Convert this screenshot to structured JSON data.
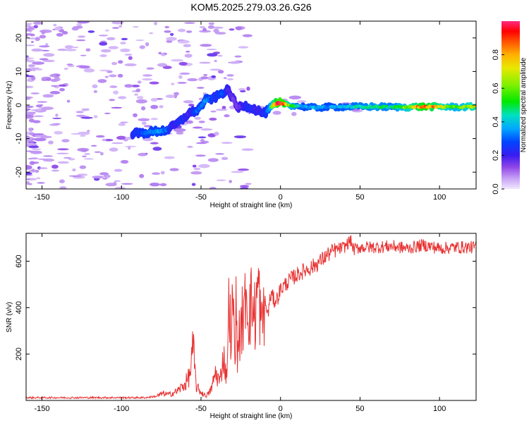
{
  "title": "KOM5.2025.279.03.26.G26",
  "chart_data": [
    {
      "type": "heatmap",
      "name": "spectrogram",
      "xlabel": "Height of straight line (km)",
      "ylabel": "Frequency (Hz)",
      "xlim": [
        -160,
        123
      ],
      "ylim": [
        -25,
        25
      ],
      "xticks": [
        -150,
        -100,
        -50,
        0,
        50,
        100
      ],
      "yticks": [
        -20,
        -10,
        0,
        10,
        20
      ],
      "colorbar": {
        "label": "Normalized spectral amplitude",
        "range": [
          0.0,
          1.0
        ],
        "ticks": [
          "0.0",
          "0.2",
          "0.4",
          "0.6",
          "0.8"
        ],
        "ticks_values": [
          0.0,
          0.2,
          0.4,
          0.6,
          0.8
        ]
      },
      "ridge": {
        "x": [
          -93,
          -85,
          -78,
          -72,
          -68,
          -62,
          -58,
          -52,
          -47,
          -42,
          -37,
          -33,
          -30,
          -27,
          -24,
          -20,
          -15,
          -10,
          -7,
          -4,
          -1,
          2,
          6,
          10,
          15,
          20,
          30,
          40,
          50,
          60,
          70,
          80,
          90,
          100,
          110,
          123
        ],
        "y": [
          -8.5,
          -8.3,
          -7.8,
          -7.5,
          -6.5,
          -4.5,
          -2.5,
          -1.5,
          1.5,
          2.0,
          3.5,
          4.5,
          2.0,
          -1.0,
          0.0,
          -0.5,
          -1.5,
          -2.5,
          -1.2,
          0.2,
          0.5,
          0.5,
          0.0,
          -0.3,
          -0.5,
          -0.8,
          -0.6,
          -0.5,
          -0.5,
          -0.5,
          -0.6,
          -0.6,
          -0.5,
          -0.5,
          -0.6,
          -0.5
        ],
        "amplitude": [
          0.25,
          0.3,
          0.35,
          0.3,
          0.2,
          0.25,
          0.2,
          0.3,
          0.35,
          0.25,
          0.3,
          0.2,
          0.15,
          0.15,
          0.2,
          0.25,
          0.2,
          0.25,
          0.4,
          0.75,
          1.0,
          0.95,
          0.6,
          0.45,
          0.35,
          0.4,
          0.35,
          0.4,
          0.45,
          0.5,
          0.45,
          0.65,
          0.9,
          0.75,
          0.55,
          0.75
        ]
      }
    },
    {
      "type": "line",
      "name": "snr",
      "xlabel": "Height of straight line (km)",
      "ylabel": "SNR (v/v)",
      "xlim": [
        -160,
        123
      ],
      "ylim": [
        0,
        720
      ],
      "xticks": [
        -150,
        -100,
        -50,
        0,
        50,
        100
      ],
      "yticks": [
        200,
        400,
        600
      ],
      "color": "#e83232",
      "x": [
        -160,
        -140,
        -120,
        -100,
        -85,
        -78,
        -74,
        -70,
        -65,
        -60,
        -57,
        -55,
        -53,
        -50,
        -47,
        -45,
        -43,
        -41,
        -38,
        -36,
        -34,
        -32,
        -31,
        -30,
        -29,
        -28,
        -27,
        -26,
        -25,
        -24,
        -23,
        -22,
        -20,
        -18,
        -16,
        -14,
        -12,
        -10,
        -8,
        -6,
        -4,
        -2,
        0,
        3,
        6,
        10,
        15,
        20,
        25,
        30,
        35,
        40,
        44,
        46,
        50,
        60,
        70,
        80,
        90,
        100,
        110,
        123
      ],
      "y": [
        12,
        12,
        12,
        12,
        12,
        18,
        30,
        25,
        40,
        70,
        110,
        230,
        60,
        35,
        20,
        30,
        60,
        120,
        80,
        200,
        100,
        480,
        150,
        530,
        200,
        380,
        180,
        320,
        250,
        400,
        300,
        520,
        380,
        420,
        360,
        500,
        300,
        430,
        370,
        460,
        430,
        440,
        480,
        500,
        520,
        540,
        560,
        575,
        600,
        630,
        650,
        660,
        690,
        650,
        660,
        660,
        665,
        655,
        670,
        655,
        660,
        660
      ]
    }
  ]
}
